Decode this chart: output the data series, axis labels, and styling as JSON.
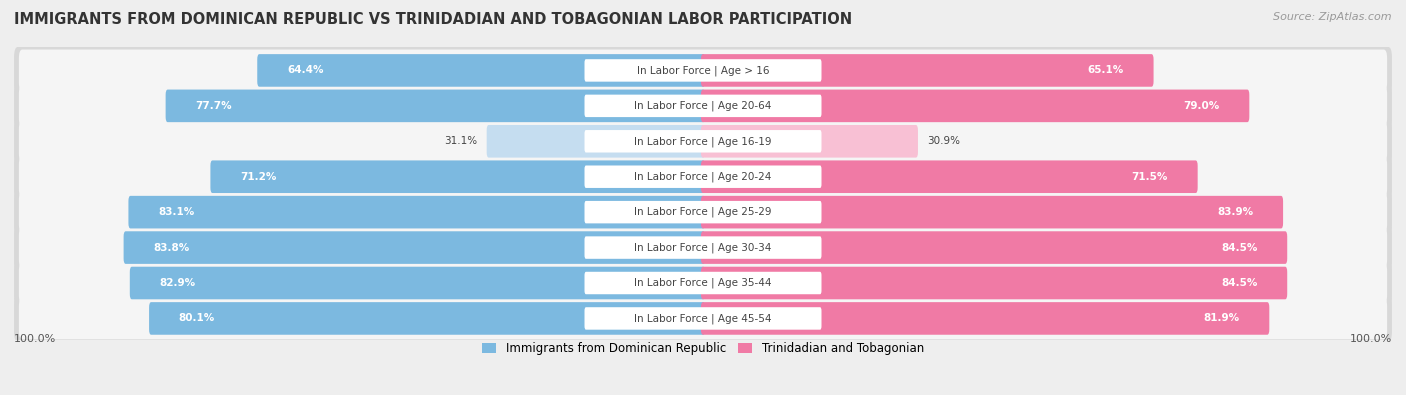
{
  "title": "IMMIGRANTS FROM DOMINICAN REPUBLIC VS TRINIDADIAN AND TOBAGONIAN LABOR PARTICIPATION",
  "source": "Source: ZipAtlas.com",
  "categories": [
    "In Labor Force | Age > 16",
    "In Labor Force | Age 20-64",
    "In Labor Force | Age 16-19",
    "In Labor Force | Age 20-24",
    "In Labor Force | Age 25-29",
    "In Labor Force | Age 30-34",
    "In Labor Force | Age 35-44",
    "In Labor Force | Age 45-54"
  ],
  "dominican_values": [
    64.4,
    77.7,
    31.1,
    71.2,
    83.1,
    83.8,
    82.9,
    80.1
  ],
  "trinidadian_values": [
    65.1,
    79.0,
    30.9,
    71.5,
    83.9,
    84.5,
    84.5,
    81.9
  ],
  "dominican_color": "#7cb9e0",
  "dominican_color_light": "#c5ddf0",
  "trinidadian_color": "#f07aa5",
  "trinidadian_color_light": "#f8c0d4",
  "bg_color": "#eeeeee",
  "row_bg_outer": "#d8d8d8",
  "row_bg_inner": "#f5f5f5",
  "title_fontsize": 10.5,
  "label_fontsize": 7.5,
  "value_fontsize": 7.5,
  "legend_fontsize": 8.5,
  "source_fontsize": 8
}
